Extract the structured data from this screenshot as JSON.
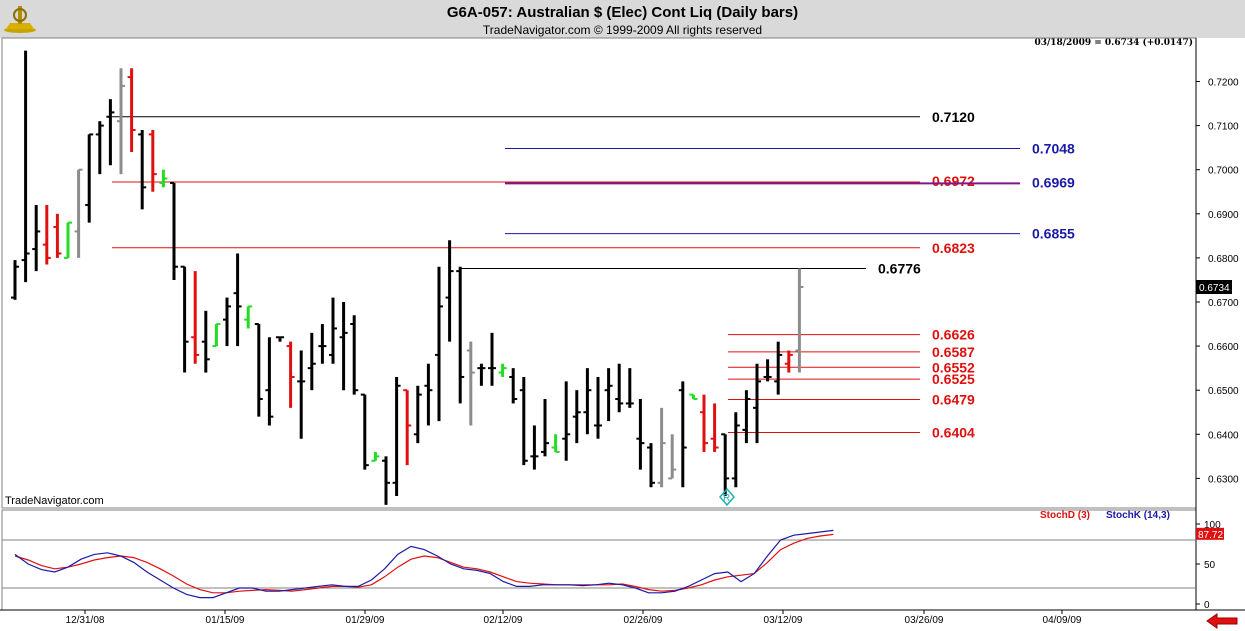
{
  "header": {
    "title": "G6A-057:  Australian $ (Elec) Cont Liq  (Daily bars)",
    "subtitle": "TradeNavigator.com © 1999-2009 All rights reserved"
  },
  "price_note": "03/18/2009 = 0.6734 (+0.0147)",
  "watermark": "TradeNavigator.com",
  "last_price": "0.6734",
  "colors": {
    "background": "#ffffff",
    "header": "#d9d9d9",
    "black_line": "#000000",
    "red_line": "#e01010",
    "blue_line": "#1a1aa8",
    "purple_line": "#7a1a8a"
  },
  "icons": {
    "logo": "ship-wheel-icon",
    "marker": "r-diamond-icon",
    "nav_arrow": "red-left-arrow-icon"
  },
  "chart_data": [
    {
      "type": "ohlc",
      "panel": "price",
      "y_axis": {
        "ticks": [
          "0.7200",
          "0.7100",
          "0.7000",
          "0.6900",
          "0.6800",
          "0.6700",
          "0.6600",
          "0.6500",
          "0.6400",
          "0.6300"
        ]
      },
      "x_axis": {
        "ticks": [
          "12/31/08",
          "01/15/09",
          "01/29/09",
          "02/12/09",
          "02/26/09",
          "03/12/09",
          "03/26/09",
          "04/09/09"
        ]
      },
      "levels": [
        {
          "label": "0.7120",
          "value": 0.712,
          "color": "black"
        },
        {
          "label": "0.7048",
          "value": 0.7048,
          "color": "blue"
        },
        {
          "label": "0.6972",
          "value": 0.6972,
          "color": "red"
        },
        {
          "label": "0.6969",
          "value": 0.6969,
          "color": "blue"
        },
        {
          "label": "0.6855",
          "value": 0.6855,
          "color": "blue"
        },
        {
          "label": "0.6823",
          "value": 0.6823,
          "color": "red"
        },
        {
          "label": "0.6776",
          "value": 0.6776,
          "color": "black"
        },
        {
          "label": "0.6626",
          "value": 0.6626,
          "color": "red"
        },
        {
          "label": "0.6587",
          "value": 0.6587,
          "color": "red"
        },
        {
          "label": "0.6552",
          "value": 0.6552,
          "color": "red"
        },
        {
          "label": "0.6525",
          "value": 0.6525,
          "color": "red"
        },
        {
          "label": "0.6479",
          "value": 0.6479,
          "color": "red"
        },
        {
          "label": "0.6404",
          "value": 0.6404,
          "color": "red"
        }
      ],
      "bars": [
        {
          "o": 0.671,
          "h": 0.6795,
          "l": 0.6705,
          "c": 0.678,
          "col": "black"
        },
        {
          "o": 0.6795,
          "h": 0.727,
          "l": 0.6745,
          "c": 0.681,
          "col": "black"
        },
        {
          "o": 0.682,
          "h": 0.692,
          "l": 0.677,
          "c": 0.686,
          "col": "black"
        },
        {
          "o": 0.683,
          "h": 0.692,
          "l": 0.6785,
          "c": 0.68,
          "col": "red"
        },
        {
          "o": 0.687,
          "h": 0.69,
          "l": 0.68,
          "c": 0.681,
          "col": "red"
        },
        {
          "o": 0.68,
          "h": 0.688,
          "l": 0.68,
          "c": 0.688,
          "col": "green"
        },
        {
          "o": 0.686,
          "h": 0.7,
          "l": 0.68,
          "c": 0.7,
          "col": "gray"
        },
        {
          "o": 0.692,
          "h": 0.708,
          "l": 0.688,
          "c": 0.708,
          "col": "black"
        },
        {
          "o": 0.708,
          "h": 0.711,
          "l": 0.699,
          "c": 0.71,
          "col": "black"
        },
        {
          "o": 0.712,
          "h": 0.716,
          "l": 0.701,
          "c": 0.713,
          "col": "black"
        },
        {
          "o": 0.711,
          "h": 0.723,
          "l": 0.699,
          "c": 0.719,
          "col": "gray"
        },
        {
          "o": 0.721,
          "h": 0.723,
          "l": 0.704,
          "c": 0.709,
          "col": "red"
        },
        {
          "o": 0.708,
          "h": 0.709,
          "l": 0.691,
          "c": 0.696,
          "col": "black"
        },
        {
          "o": 0.708,
          "h": 0.709,
          "l": 0.695,
          "c": 0.699,
          "col": "red"
        },
        {
          "o": 0.697,
          "h": 0.7,
          "l": 0.696,
          "c": 0.698,
          "col": "green"
        },
        {
          "o": 0.697,
          "h": 0.697,
          "l": 0.675,
          "c": 0.678,
          "col": "black"
        },
        {
          "o": 0.678,
          "h": 0.678,
          "l": 0.654,
          "c": 0.661,
          "col": "black"
        },
        {
          "o": 0.662,
          "h": 0.677,
          "l": 0.656,
          "c": 0.658,
          "col": "red"
        },
        {
          "o": 0.661,
          "h": 0.668,
          "l": 0.654,
          "c": 0.657,
          "col": "black"
        },
        {
          "o": 0.66,
          "h": 0.665,
          "l": 0.66,
          "c": 0.665,
          "col": "green"
        },
        {
          "o": 0.666,
          "h": 0.671,
          "l": 0.66,
          "c": 0.669,
          "col": "black"
        },
        {
          "o": 0.672,
          "h": 0.681,
          "l": 0.66,
          "c": 0.669,
          "col": "black"
        },
        {
          "o": 0.666,
          "h": 0.669,
          "l": 0.664,
          "c": 0.669,
          "col": "green"
        },
        {
          "o": 0.665,
          "h": 0.665,
          "l": 0.644,
          "c": 0.648,
          "col": "black"
        },
        {
          "o": 0.65,
          "h": 0.662,
          "l": 0.642,
          "c": 0.644,
          "col": "black"
        },
        {
          "o": 0.662,
          "h": 0.662,
          "l": 0.661,
          "c": 0.662,
          "col": "black"
        },
        {
          "o": 0.66,
          "h": 0.661,
          "l": 0.646,
          "c": 0.653,
          "col": "red"
        },
        {
          "o": 0.652,
          "h": 0.659,
          "l": 0.639,
          "c": 0.652,
          "col": "black"
        },
        {
          "o": 0.655,
          "h": 0.663,
          "l": 0.65,
          "c": 0.656,
          "col": "black"
        },
        {
          "o": 0.66,
          "h": 0.665,
          "l": 0.656,
          "c": 0.66,
          "col": "black"
        },
        {
          "o": 0.658,
          "h": 0.671,
          "l": 0.656,
          "c": 0.664,
          "col": "black"
        },
        {
          "o": 0.662,
          "h": 0.67,
          "l": 0.65,
          "c": 0.663,
          "col": "black"
        },
        {
          "o": 0.665,
          "h": 0.667,
          "l": 0.649,
          "c": 0.65,
          "col": "black"
        },
        {
          "o": 0.649,
          "h": 0.649,
          "l": 0.632,
          "c": 0.633,
          "col": "black"
        },
        {
          "o": 0.634,
          "h": 0.636,
          "l": 0.634,
          "c": 0.635,
          "col": "green"
        },
        {
          "o": 0.634,
          "h": 0.635,
          "l": 0.624,
          "c": 0.629,
          "col": "black"
        },
        {
          "o": 0.629,
          "h": 0.653,
          "l": 0.626,
          "c": 0.651,
          "col": "black"
        },
        {
          "o": 0.65,
          "h": 0.65,
          "l": 0.633,
          "c": 0.642,
          "col": "red"
        },
        {
          "o": 0.64,
          "h": 0.651,
          "l": 0.638,
          "c": 0.649,
          "col": "black"
        },
        {
          "o": 0.651,
          "h": 0.656,
          "l": 0.642,
          "c": 0.65,
          "col": "black"
        },
        {
          "o": 0.658,
          "h": 0.678,
          "l": 0.643,
          "c": 0.669,
          "col": "black"
        },
        {
          "o": 0.671,
          "h": 0.684,
          "l": 0.661,
          "c": 0.677,
          "col": "black"
        },
        {
          "o": 0.677,
          "h": 0.678,
          "l": 0.647,
          "c": 0.653,
          "col": "black"
        },
        {
          "o": 0.659,
          "h": 0.661,
          "l": 0.642,
          "c": 0.654,
          "col": "gray"
        },
        {
          "o": 0.655,
          "h": 0.656,
          "l": 0.651,
          "c": 0.655,
          "col": "black"
        },
        {
          "o": 0.655,
          "h": 0.663,
          "l": 0.651,
          "c": 0.655,
          "col": "black"
        },
        {
          "o": 0.654,
          "h": 0.656,
          "l": 0.653,
          "c": 0.655,
          "col": "green"
        },
        {
          "o": 0.653,
          "h": 0.655,
          "l": 0.647,
          "c": 0.648,
          "col": "black"
        },
        {
          "o": 0.65,
          "h": 0.653,
          "l": 0.633,
          "c": 0.634,
          "col": "black"
        },
        {
          "o": 0.635,
          "h": 0.642,
          "l": 0.632,
          "c": 0.635,
          "col": "black"
        },
        {
          "o": 0.636,
          "h": 0.648,
          "l": 0.635,
          "c": 0.638,
          "col": "black"
        },
        {
          "o": 0.637,
          "h": 0.64,
          "l": 0.636,
          "c": 0.636,
          "col": "green"
        },
        {
          "o": 0.639,
          "h": 0.652,
          "l": 0.634,
          "c": 0.64,
          "col": "black"
        },
        {
          "o": 0.644,
          "h": 0.65,
          "l": 0.638,
          "c": 0.645,
          "col": "black"
        },
        {
          "o": 0.645,
          "h": 0.655,
          "l": 0.64,
          "c": 0.65,
          "col": "black"
        },
        {
          "o": 0.642,
          "h": 0.653,
          "l": 0.639,
          "c": 0.642,
          "col": "black"
        },
        {
          "o": 0.65,
          "h": 0.655,
          "l": 0.643,
          "c": 0.651,
          "col": "black"
        },
        {
          "o": 0.648,
          "h": 0.656,
          "l": 0.645,
          "c": 0.647,
          "col": "black"
        },
        {
          "o": 0.647,
          "h": 0.655,
          "l": 0.646,
          "c": 0.647,
          "col": "black"
        },
        {
          "o": 0.639,
          "h": 0.648,
          "l": 0.632,
          "c": 0.638,
          "col": "black"
        },
        {
          "o": 0.637,
          "h": 0.638,
          "l": 0.628,
          "c": 0.629,
          "col": "black"
        },
        {
          "o": 0.629,
          "h": 0.646,
          "l": 0.628,
          "c": 0.638,
          "col": "gray"
        },
        {
          "o": 0.63,
          "h": 0.64,
          "l": 0.63,
          "c": 0.632,
          "col": "gray"
        },
        {
          "o": 0.65,
          "h": 0.652,
          "l": 0.628,
          "c": 0.637,
          "col": "black"
        },
        {
          "o": 0.649,
          "h": 0.649,
          "l": 0.648,
          "c": 0.648,
          "col": "green"
        },
        {
          "o": 0.645,
          "h": 0.649,
          "l": 0.636,
          "c": 0.638,
          "col": "red"
        },
        {
          "o": 0.639,
          "h": 0.647,
          "l": 0.636,
          "c": 0.637,
          "col": "red"
        },
        {
          "o": 0.64,
          "h": 0.64,
          "l": 0.626,
          "c": 0.63,
          "col": "black"
        },
        {
          "o": 0.63,
          "h": 0.645,
          "l": 0.628,
          "c": 0.642,
          "col": "black"
        },
        {
          "o": 0.641,
          "h": 0.65,
          "l": 0.638,
          "c": 0.648,
          "col": "black"
        },
        {
          "o": 0.646,
          "h": 0.656,
          "l": 0.638,
          "c": 0.652,
          "col": "black"
        },
        {
          "o": 0.653,
          "h": 0.657,
          "l": 0.652,
          "c": 0.653,
          "col": "black"
        },
        {
          "o": 0.652,
          "h": 0.661,
          "l": 0.649,
          "c": 0.658,
          "col": "black"
        },
        {
          "o": 0.656,
          "h": 0.659,
          "l": 0.654,
          "c": 0.658,
          "col": "red"
        },
        {
          "o": 0.659,
          "h": 0.6776,
          "l": 0.654,
          "c": 0.6734,
          "col": "gray"
        }
      ]
    },
    {
      "type": "line",
      "panel": "stochastic",
      "y_axis": {
        "ticks": [
          "100",
          "50",
          "0"
        ]
      },
      "reference_lines": [
        80,
        20
      ],
      "last_value": "87.72",
      "series": [
        {
          "name": "StochD (3)",
          "color": "#e01010",
          "values": [
            60,
            55,
            48,
            44,
            46,
            50,
            55,
            58,
            60,
            58,
            52,
            44,
            35,
            25,
            18,
            14,
            14,
            16,
            17,
            18,
            17,
            16,
            18,
            20,
            22,
            22,
            21,
            24,
            34,
            46,
            56,
            60,
            58,
            52,
            46,
            44,
            40,
            34,
            28,
            26,
            25,
            24,
            24,
            24,
            24,
            24,
            25,
            22,
            18,
            16,
            17,
            20,
            24,
            30,
            34,
            36,
            38,
            52,
            68,
            76,
            82,
            85,
            87
          ]
        },
        {
          "name": "StochK (14,3)",
          "color": "#1a1aa8",
          "values": [
            62,
            50,
            43,
            40,
            46,
            56,
            62,
            64,
            60,
            52,
            40,
            30,
            20,
            12,
            8,
            8,
            14,
            20,
            20,
            16,
            16,
            18,
            20,
            22,
            24,
            22,
            22,
            30,
            44,
            62,
            72,
            68,
            60,
            50,
            44,
            42,
            38,
            28,
            22,
            22,
            24,
            24,
            24,
            23,
            24,
            26,
            24,
            20,
            14,
            14,
            16,
            22,
            30,
            38,
            40,
            28,
            38,
            60,
            80,
            86,
            88,
            90,
            92
          ]
        }
      ]
    }
  ]
}
